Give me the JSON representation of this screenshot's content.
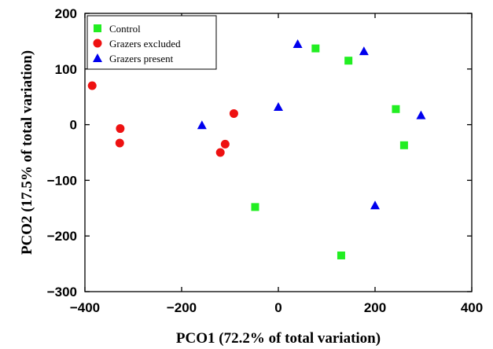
{
  "chart_data": {
    "type": "scatter",
    "xlabel": "PCO1 (72.2% of total variation)",
    "ylabel": "PCO2 (17.5% of total variation)",
    "xlim": [
      -400,
      400
    ],
    "ylim": [
      -300,
      200
    ],
    "xticks": [
      -400,
      -200,
      0,
      200,
      400
    ],
    "yticks": [
      -300,
      -200,
      -100,
      0,
      100,
      200
    ],
    "xtick_labels": [
      "−400",
      "−200",
      "0",
      "200",
      "400"
    ],
    "ytick_labels": [
      "−300",
      "−200",
      "−100",
      "0",
      "100",
      "200"
    ],
    "grid": false,
    "legend_position": "top-left",
    "series": [
      {
        "name": "Control",
        "marker": "square",
        "color": "#22ee22",
        "points": [
          [
            77,
            137
          ],
          [
            145,
            115
          ],
          [
            243,
            28
          ],
          [
            260,
            -37
          ],
          [
            -48,
            -148
          ],
          [
            130,
            -235
          ]
        ]
      },
      {
        "name": "Grazers excluded",
        "marker": "circle",
        "color": "#ee1111",
        "points": [
          [
            -385,
            70
          ],
          [
            -327,
            -7
          ],
          [
            -328,
            -33
          ],
          [
            -92,
            20
          ],
          [
            -110,
            -35
          ],
          [
            -120,
            -50
          ]
        ]
      },
      {
        "name": "Grazers present",
        "marker": "triangle",
        "color": "#0000ee",
        "points": [
          [
            40,
            145
          ],
          [
            177,
            132
          ],
          [
            0,
            32
          ],
          [
            -158,
            -1
          ],
          [
            295,
            17
          ],
          [
            200,
            -145
          ]
        ]
      }
    ]
  }
}
